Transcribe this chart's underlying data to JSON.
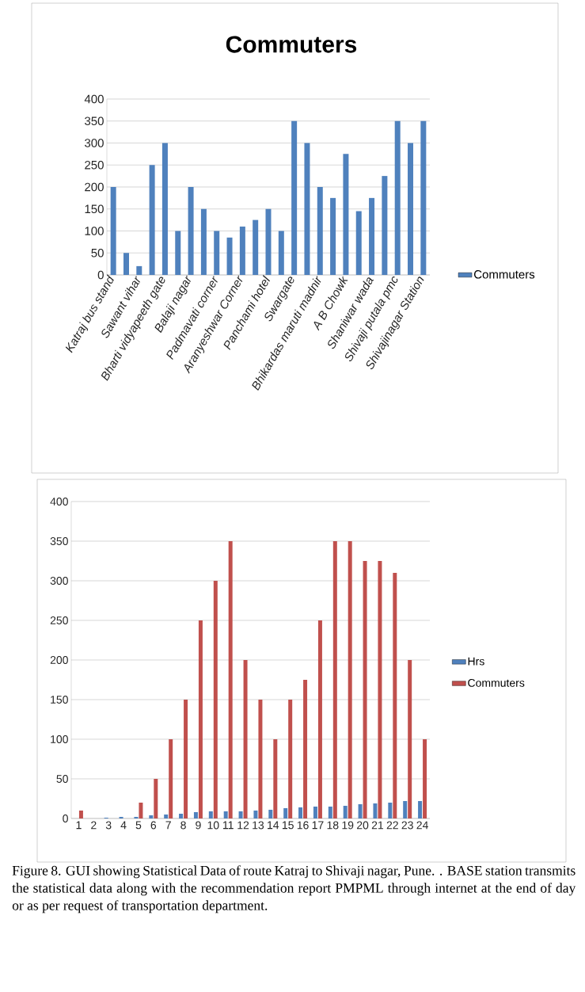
{
  "chart_data": [
    {
      "type": "bar",
      "title": "Commuters",
      "categories": [
        "Katraj bus stand",
        null,
        "Sawant vihar",
        null,
        "Bharti vidyapeeth gate",
        null,
        "Balaji nagar",
        null,
        "Padmavati corner",
        null,
        "Aranyeshwar Corner",
        null,
        "Panchami hotel",
        null,
        "Swargate",
        null,
        "Bhikardas maruti madnir",
        null,
        "A B Chowk",
        null,
        "Shaniwar wada",
        null,
        "Shivaji putala pmc",
        null,
        "Shivajinagar Station"
      ],
      "series": [
        {
          "name": "Commuters",
          "color": "#4f81bd",
          "values": [
            200,
            50,
            20,
            250,
            300,
            100,
            200,
            150,
            100,
            85,
            110,
            125,
            150,
            100,
            350,
            300,
            200,
            175,
            275,
            145,
            175,
            225,
            350,
            300,
            350
          ]
        }
      ],
      "ylim": [
        0,
        400
      ],
      "yticks": [
        0,
        50,
        100,
        150,
        200,
        250,
        300,
        350,
        400
      ],
      "grid": "y",
      "legend": "right"
    },
    {
      "type": "bar",
      "categories": [
        "1",
        "2",
        "3",
        "4",
        "5",
        "6",
        "7",
        "8",
        "9",
        "10",
        "11",
        "12",
        "13",
        "14",
        "15",
        "16",
        "17",
        "18",
        "19",
        "20",
        "21",
        "22",
        "23",
        "24"
      ],
      "series": [
        {
          "name": "Hrs",
          "color": "#4f81bd",
          "values": [
            0,
            0,
            1,
            2,
            2,
            4,
            5,
            6,
            8,
            9,
            9,
            9,
            10,
            11,
            13,
            14,
            15,
            15,
            16,
            18,
            19,
            20,
            22,
            22
          ]
        },
        {
          "name": "Commuters",
          "color": "#c0504d",
          "values": [
            10,
            0,
            0,
            0,
            20,
            50,
            100,
            150,
            250,
            300,
            350,
            200,
            150,
            100,
            150,
            175,
            250,
            350,
            350,
            325,
            325,
            310,
            200,
            100
          ]
        }
      ],
      "ylim": [
        0,
        400
      ],
      "yticks": [
        0,
        50,
        100,
        150,
        200,
        250,
        300,
        350,
        400
      ],
      "grid": "y",
      "legend": "right",
      "annotations": [
        "Figure 8. GUI showing Statistical Data of route Katraj to Shivaji nagar, Pune. . BASE station transmits the statistical data along with the recommendation report PMPML through internet at the end of day or as per request of transportation department."
      ]
    }
  ]
}
